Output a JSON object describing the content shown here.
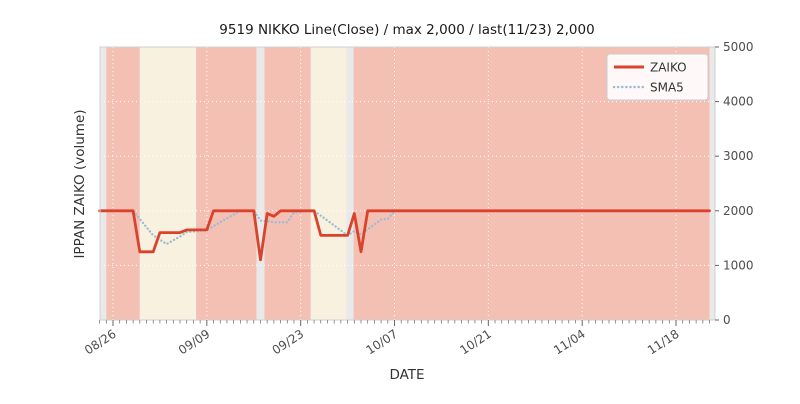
{
  "chart_data": {
    "type": "line",
    "title": "9519 NIKKO Line(Close) / max 2,000 / last(11/23) 2,000",
    "xlabel": "DATE",
    "ylabel": "IPPAN ZAIKO (volume)",
    "ylim": [
      0,
      5000
    ],
    "yticks": [
      0,
      1000,
      2000,
      3000,
      4000,
      5000
    ],
    "xtick_labels": [
      "08/26",
      "09/09",
      "09/23",
      "10/07",
      "10/21",
      "11/04",
      "11/18"
    ],
    "xtick_days": [
      2,
      16,
      30,
      44,
      58,
      72,
      86
    ],
    "grid": true,
    "legend_position": "upper right",
    "plot_bg_color": "#e9e9e9",
    "band_colors": {
      "pink": "#f4c0b4",
      "cream": "#f8f1df"
    },
    "bands": [
      {
        "from_day": 1.0,
        "to_day": 6.0,
        "color": "pink"
      },
      {
        "from_day": 6.0,
        "to_day": 14.4,
        "color": "cream"
      },
      {
        "from_day": 14.4,
        "to_day": 23.4,
        "color": "pink"
      },
      {
        "from_day": 24.6,
        "to_day": 31.5,
        "color": "pink"
      },
      {
        "from_day": 31.5,
        "to_day": 36.8,
        "color": "cream"
      },
      {
        "from_day": 37.9,
        "to_day": 91.0,
        "color": "pink"
      }
    ],
    "dates": [
      "08/24",
      "08/25",
      "08/26",
      "08/27",
      "08/28",
      "08/29",
      "08/30",
      "08/31",
      "09/01",
      "09/02",
      "09/03",
      "09/04",
      "09/05",
      "09/06",
      "09/07",
      "09/08",
      "09/09",
      "09/10",
      "09/11",
      "09/12",
      "09/13",
      "09/14",
      "09/15",
      "09/16",
      "09/17",
      "09/18",
      "09/19",
      "09/20",
      "09/21",
      "09/22",
      "09/23",
      "09/24",
      "09/25",
      "09/26",
      "09/27",
      "09/28",
      "09/29",
      "09/30",
      "10/01",
      "10/02",
      "10/03",
      "10/04",
      "10/05",
      "10/06",
      "10/07",
      "10/08",
      "10/09",
      "10/10",
      "10/11",
      "10/12",
      "10/13",
      "10/14",
      "10/15",
      "10/16",
      "10/17",
      "10/18",
      "10/19",
      "10/20",
      "10/21",
      "10/22",
      "10/23",
      "10/24",
      "10/25",
      "10/26",
      "10/27",
      "10/28",
      "10/29",
      "10/30",
      "10/31",
      "11/01",
      "11/02",
      "11/03",
      "11/04",
      "11/05",
      "11/06",
      "11/07",
      "11/08",
      "11/09",
      "11/10",
      "11/11",
      "11/12",
      "11/13",
      "11/14",
      "11/15",
      "11/16",
      "11/17",
      "11/18",
      "11/19",
      "11/20",
      "11/21",
      "11/22",
      "11/23"
    ],
    "series": [
      {
        "name": "ZAIKO",
        "color": "#d9432b",
        "style": "solid",
        "linewidth": 2.8,
        "values": [
          2000,
          2000,
          2000,
          2000,
          2000,
          2000,
          1250,
          1250,
          1250,
          1600,
          1600,
          1600,
          1600,
          1650,
          1650,
          1650,
          1650,
          2000,
          2000,
          2000,
          2000,
          2000,
          2000,
          2000,
          1100,
          1950,
          1900,
          2000,
          2000,
          2000,
          2000,
          2000,
          2000,
          1550,
          1550,
          1550,
          1550,
          1550,
          1950,
          1250,
          2000,
          2000,
          2000,
          2000,
          2000,
          2000,
          2000,
          2000,
          2000,
          2000,
          2000,
          2000,
          2000,
          2000,
          2000,
          2000,
          2000,
          2000,
          2000,
          2000,
          2000,
          2000,
          2000,
          2000,
          2000,
          2000,
          2000,
          2000,
          2000,
          2000,
          2000,
          2000,
          2000,
          2000,
          2000,
          2000,
          2000,
          2000,
          2000,
          2000,
          2000,
          2000,
          2000,
          2000,
          2000,
          2000,
          2000,
          2000,
          2000,
          2000,
          2000,
          2000
        ]
      },
      {
        "name": "SMA5",
        "color": "#9cbcd2",
        "style": "dotted",
        "linewidth": 2.3,
        "values": [
          null,
          null,
          null,
          null,
          2000,
          2000,
          1850,
          1700,
          1550,
          1470,
          1390,
          1460,
          1530,
          1610,
          1620,
          1630,
          1640,
          1720,
          1790,
          1860,
          1930,
          2000,
          2000,
          2000,
          1820,
          1810,
          1790,
          1790,
          1790,
          1970,
          1980,
          2000,
          2000,
          1910,
          1820,
          1730,
          1640,
          1550,
          1630,
          1570,
          1660,
          1750,
          1840,
          1850,
          2000,
          2000,
          2000,
          2000,
          2000,
          2000,
          2000,
          2000,
          2000,
          2000,
          2000,
          2000,
          2000,
          2000,
          2000,
          2000,
          2000,
          2000,
          2000,
          2000,
          2000,
          2000,
          2000,
          2000,
          2000,
          2000,
          2000,
          2000,
          2000,
          2000,
          2000,
          2000,
          2000,
          2000,
          2000,
          2000,
          2000,
          2000,
          2000,
          2000,
          2000,
          2000,
          2000,
          2000,
          2000,
          2000,
          2000,
          2000
        ]
      }
    ]
  }
}
